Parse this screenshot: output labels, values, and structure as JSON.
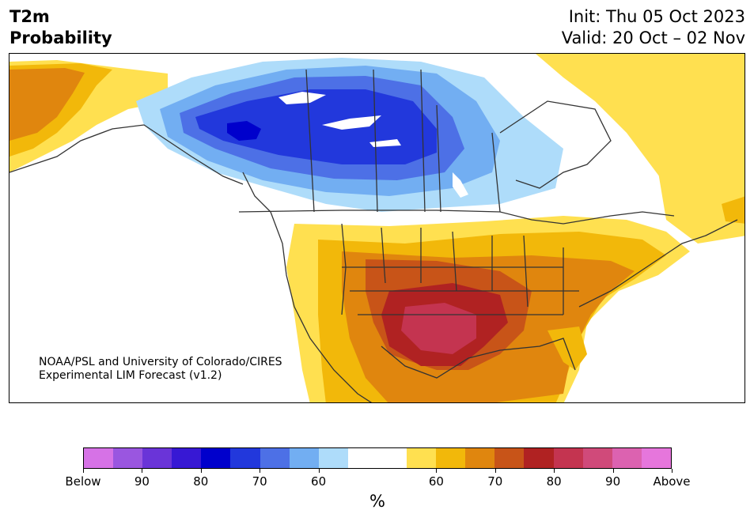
{
  "header": {
    "title_line1": "T2m",
    "title_line2": "Probability",
    "init_text": "Init: Thu 05 Oct 2023",
    "valid_text": "Valid: 20 Oct – 02 Nov"
  },
  "credit": {
    "line1": "NOAA/PSL and University of Colorado/CIRES",
    "line2": "Experimental LIM Forecast (v1.2)"
  },
  "colorbar": {
    "unit_label": "%",
    "swatches": [
      "#d672e6",
      "#9a56e0",
      "#6a34d8",
      "#3718d4",
      "#0000cc",
      "#2238dc",
      "#4d70e6",
      "#72aef2",
      "#aedcfa",
      "#ffffff",
      "#ffffff",
      "#ffe050",
      "#f2b80a",
      "#e0860e",
      "#c85418",
      "#b02222",
      "#c43450",
      "#d04a7a",
      "#dc62b0",
      "#e676dc"
    ],
    "tick_labels": [
      {
        "label": "Below",
        "index": 0
      },
      {
        "label": "90",
        "index": 2
      },
      {
        "label": "80",
        "index": 4
      },
      {
        "label": "70",
        "index": 6
      },
      {
        "label": "60",
        "index": 8
      },
      {
        "label": "60",
        "index": 12
      },
      {
        "label": "70",
        "index": 14
      },
      {
        "label": "80",
        "index": 16
      },
      {
        "label": "90",
        "index": 18
      },
      {
        "label": "Above",
        "index": 20
      }
    ]
  },
  "map": {
    "region": "North America",
    "colors": {
      "cold_light": "#aedcfa",
      "cold_mid": "#72aef2",
      "cold_deep": "#4d70e6",
      "cold_deeper": "#2238dc",
      "cold_core": "#0000cc",
      "warm_light": "#ffe050",
      "warm_mid": "#f2b80a",
      "warm_orange": "#e0860e",
      "warm_rust": "#c85418",
      "warm_red": "#b02222",
      "warm_core": "#c43450",
      "border_line": "#333333"
    }
  }
}
